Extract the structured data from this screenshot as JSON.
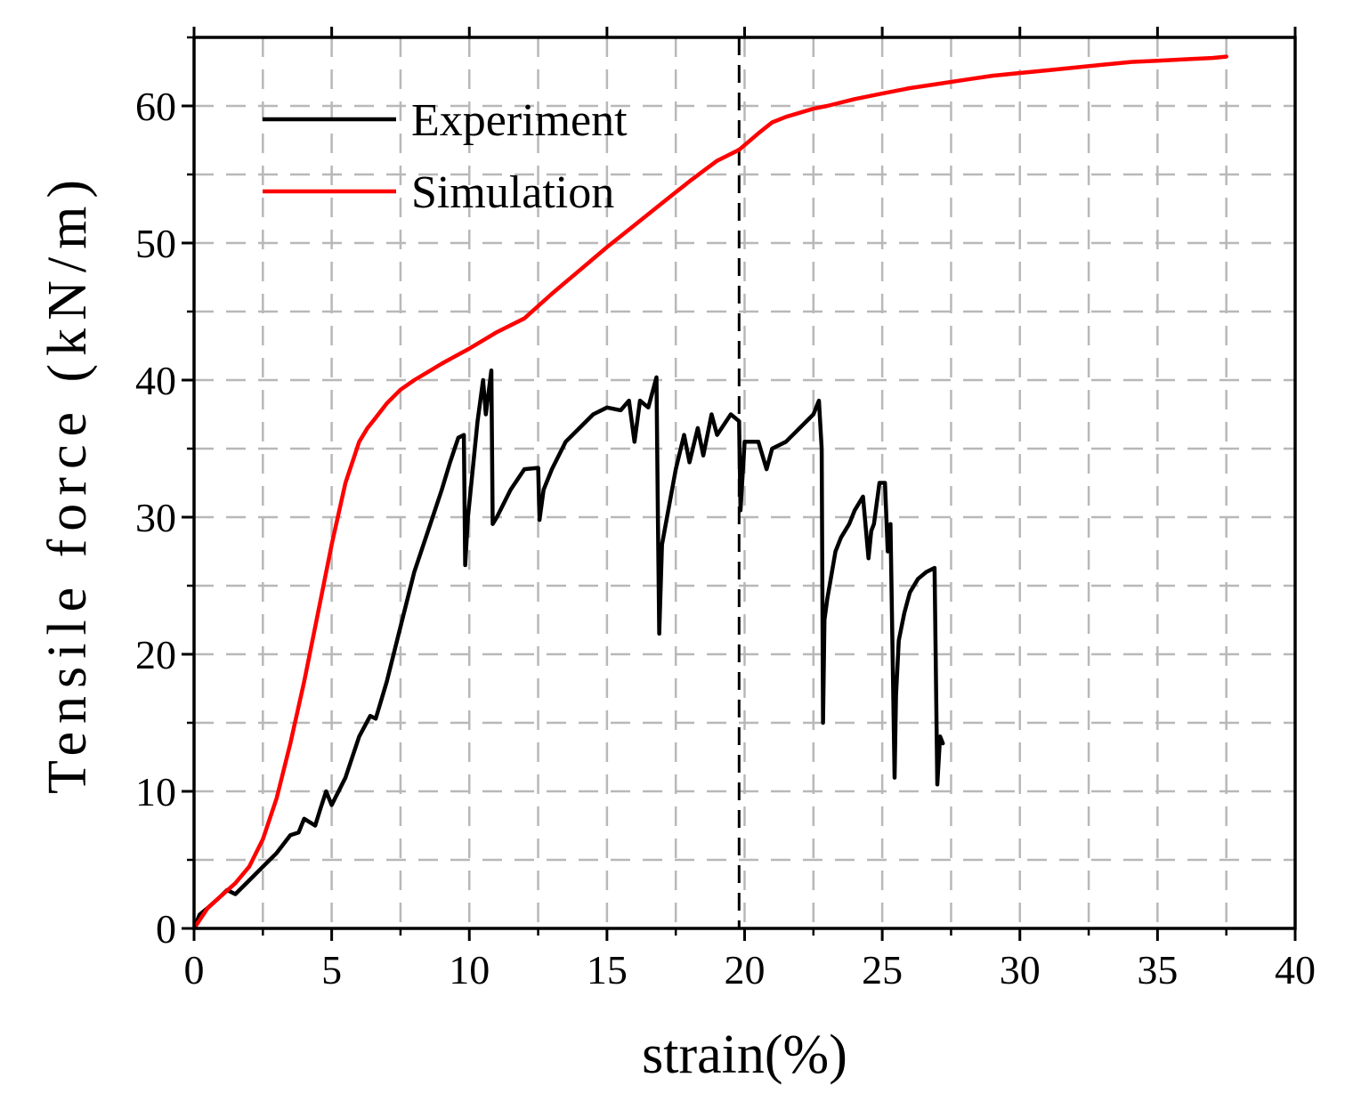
{
  "chart_data": {
    "type": "line",
    "title": "",
    "xlabel": "strain(%)",
    "ylabel": "Tensile force (kN/m)",
    "xlim": [
      0,
      40
    ],
    "ylim": [
      0,
      65
    ],
    "xticks": [
      0,
      5,
      10,
      15,
      20,
      25,
      30,
      35,
      40
    ],
    "yticks": [
      0,
      10,
      20,
      30,
      40,
      50,
      60
    ],
    "grid": true,
    "legend_position": "top-left",
    "reference_line": {
      "x": 19.8,
      "style": "dashed",
      "color": "#000000"
    },
    "series": [
      {
        "name": "Experiment",
        "color": "#000000",
        "x": [
          0,
          0.2,
          0.5,
          1.0,
          1.2,
          1.5,
          2.0,
          2.5,
          3.0,
          3.5,
          3.8,
          4.0,
          4.4,
          4.6,
          4.8,
          5.0,
          5.5,
          6.0,
          6.4,
          6.6,
          7.0,
          7.5,
          8.0,
          8.5,
          9.0,
          9.3,
          9.6,
          9.8,
          9.85,
          9.95,
          10.3,
          10.5,
          10.6,
          10.8,
          10.85,
          11.0,
          11.5,
          12.0,
          12.5,
          12.55,
          12.7,
          13.0,
          13.5,
          14.0,
          14.5,
          15.0,
          15.5,
          15.8,
          16.0,
          16.2,
          16.5,
          16.8,
          16.85,
          16.9,
          17.0,
          17.5,
          17.8,
          18.0,
          18.3,
          18.5,
          18.8,
          19.0,
          19.5,
          19.8,
          19.85,
          20.0,
          20.5,
          20.8,
          21.0,
          21.5,
          22.0,
          22.5,
          22.7,
          22.8,
          22.85,
          22.9,
          23.0,
          23.3,
          23.5,
          23.8,
          24.0,
          24.3,
          24.5,
          24.6,
          24.7,
          24.9,
          25.1,
          25.2,
          25.3,
          25.45,
          25.5,
          25.6,
          25.8,
          26.0,
          26.3,
          26.6,
          26.9,
          27.0,
          27.1,
          27.2
        ],
        "y": [
          0,
          1.0,
          1.5,
          2.4,
          2.8,
          2.5,
          3.5,
          4.5,
          5.5,
          6.8,
          7.0,
          8.0,
          7.5,
          8.8,
          10.0,
          9.0,
          11.0,
          14.0,
          15.5,
          15.3,
          18.0,
          22.0,
          26.0,
          29.0,
          32.0,
          34.0,
          35.8,
          36.0,
          26.5,
          30.0,
          37.0,
          40.0,
          37.5,
          40.7,
          29.5,
          30.0,
          32.0,
          33.5,
          33.6,
          29.8,
          32.0,
          33.5,
          35.5,
          36.5,
          37.5,
          38.0,
          37.8,
          38.5,
          35.5,
          38.5,
          38.0,
          40.2,
          30.0,
          21.5,
          28.0,
          33.5,
          36.0,
          34.0,
          36.5,
          34.5,
          37.5,
          36.0,
          37.5,
          37.0,
          30.5,
          35.5,
          35.5,
          33.5,
          35.0,
          35.5,
          36.5,
          37.5,
          38.5,
          35.0,
          15.0,
          22.5,
          24.0,
          27.5,
          28.5,
          29.5,
          30.5,
          31.5,
          27.0,
          29.0,
          29.5,
          32.5,
          32.5,
          27.5,
          29.5,
          11.0,
          17.0,
          21.0,
          23.0,
          24.5,
          25.5,
          26.0,
          26.3,
          10.5,
          14.0,
          13.5
        ]
      },
      {
        "name": "Simulation",
        "color": "#ff0000",
        "x": [
          0,
          0.5,
          1.0,
          1.5,
          2.0,
          2.5,
          3.0,
          3.5,
          4.0,
          4.5,
          5.0,
          5.5,
          6.0,
          6.3,
          6.5,
          7.0,
          7.5,
          8.0,
          8.5,
          9.0,
          10.0,
          11.0,
          12.0,
          13.0,
          14.0,
          15.0,
          16.0,
          17.0,
          18.0,
          19.0,
          19.8,
          20.5,
          21.0,
          21.5,
          22.0,
          22.5,
          23.0,
          24.0,
          25.0,
          26.0,
          27.0,
          28.0,
          29.0,
          30.0,
          31.0,
          32.0,
          33.0,
          34.0,
          35.0,
          36.0,
          37.0,
          37.5
        ],
        "y": [
          0,
          1.5,
          2.4,
          3.3,
          4.5,
          6.5,
          9.5,
          13.5,
          18.0,
          23.0,
          28.0,
          32.5,
          35.5,
          36.5,
          37.0,
          38.3,
          39.3,
          40.0,
          40.6,
          41.2,
          42.3,
          43.5,
          44.5,
          46.3,
          48.0,
          49.7,
          51.3,
          52.9,
          54.5,
          56.0,
          56.8,
          58.0,
          58.8,
          59.2,
          59.5,
          59.8,
          60.0,
          60.5,
          60.9,
          61.3,
          61.6,
          61.9,
          62.2,
          62.4,
          62.6,
          62.8,
          63.0,
          63.2,
          63.3,
          63.4,
          63.5,
          63.6
        ]
      }
    ]
  }
}
